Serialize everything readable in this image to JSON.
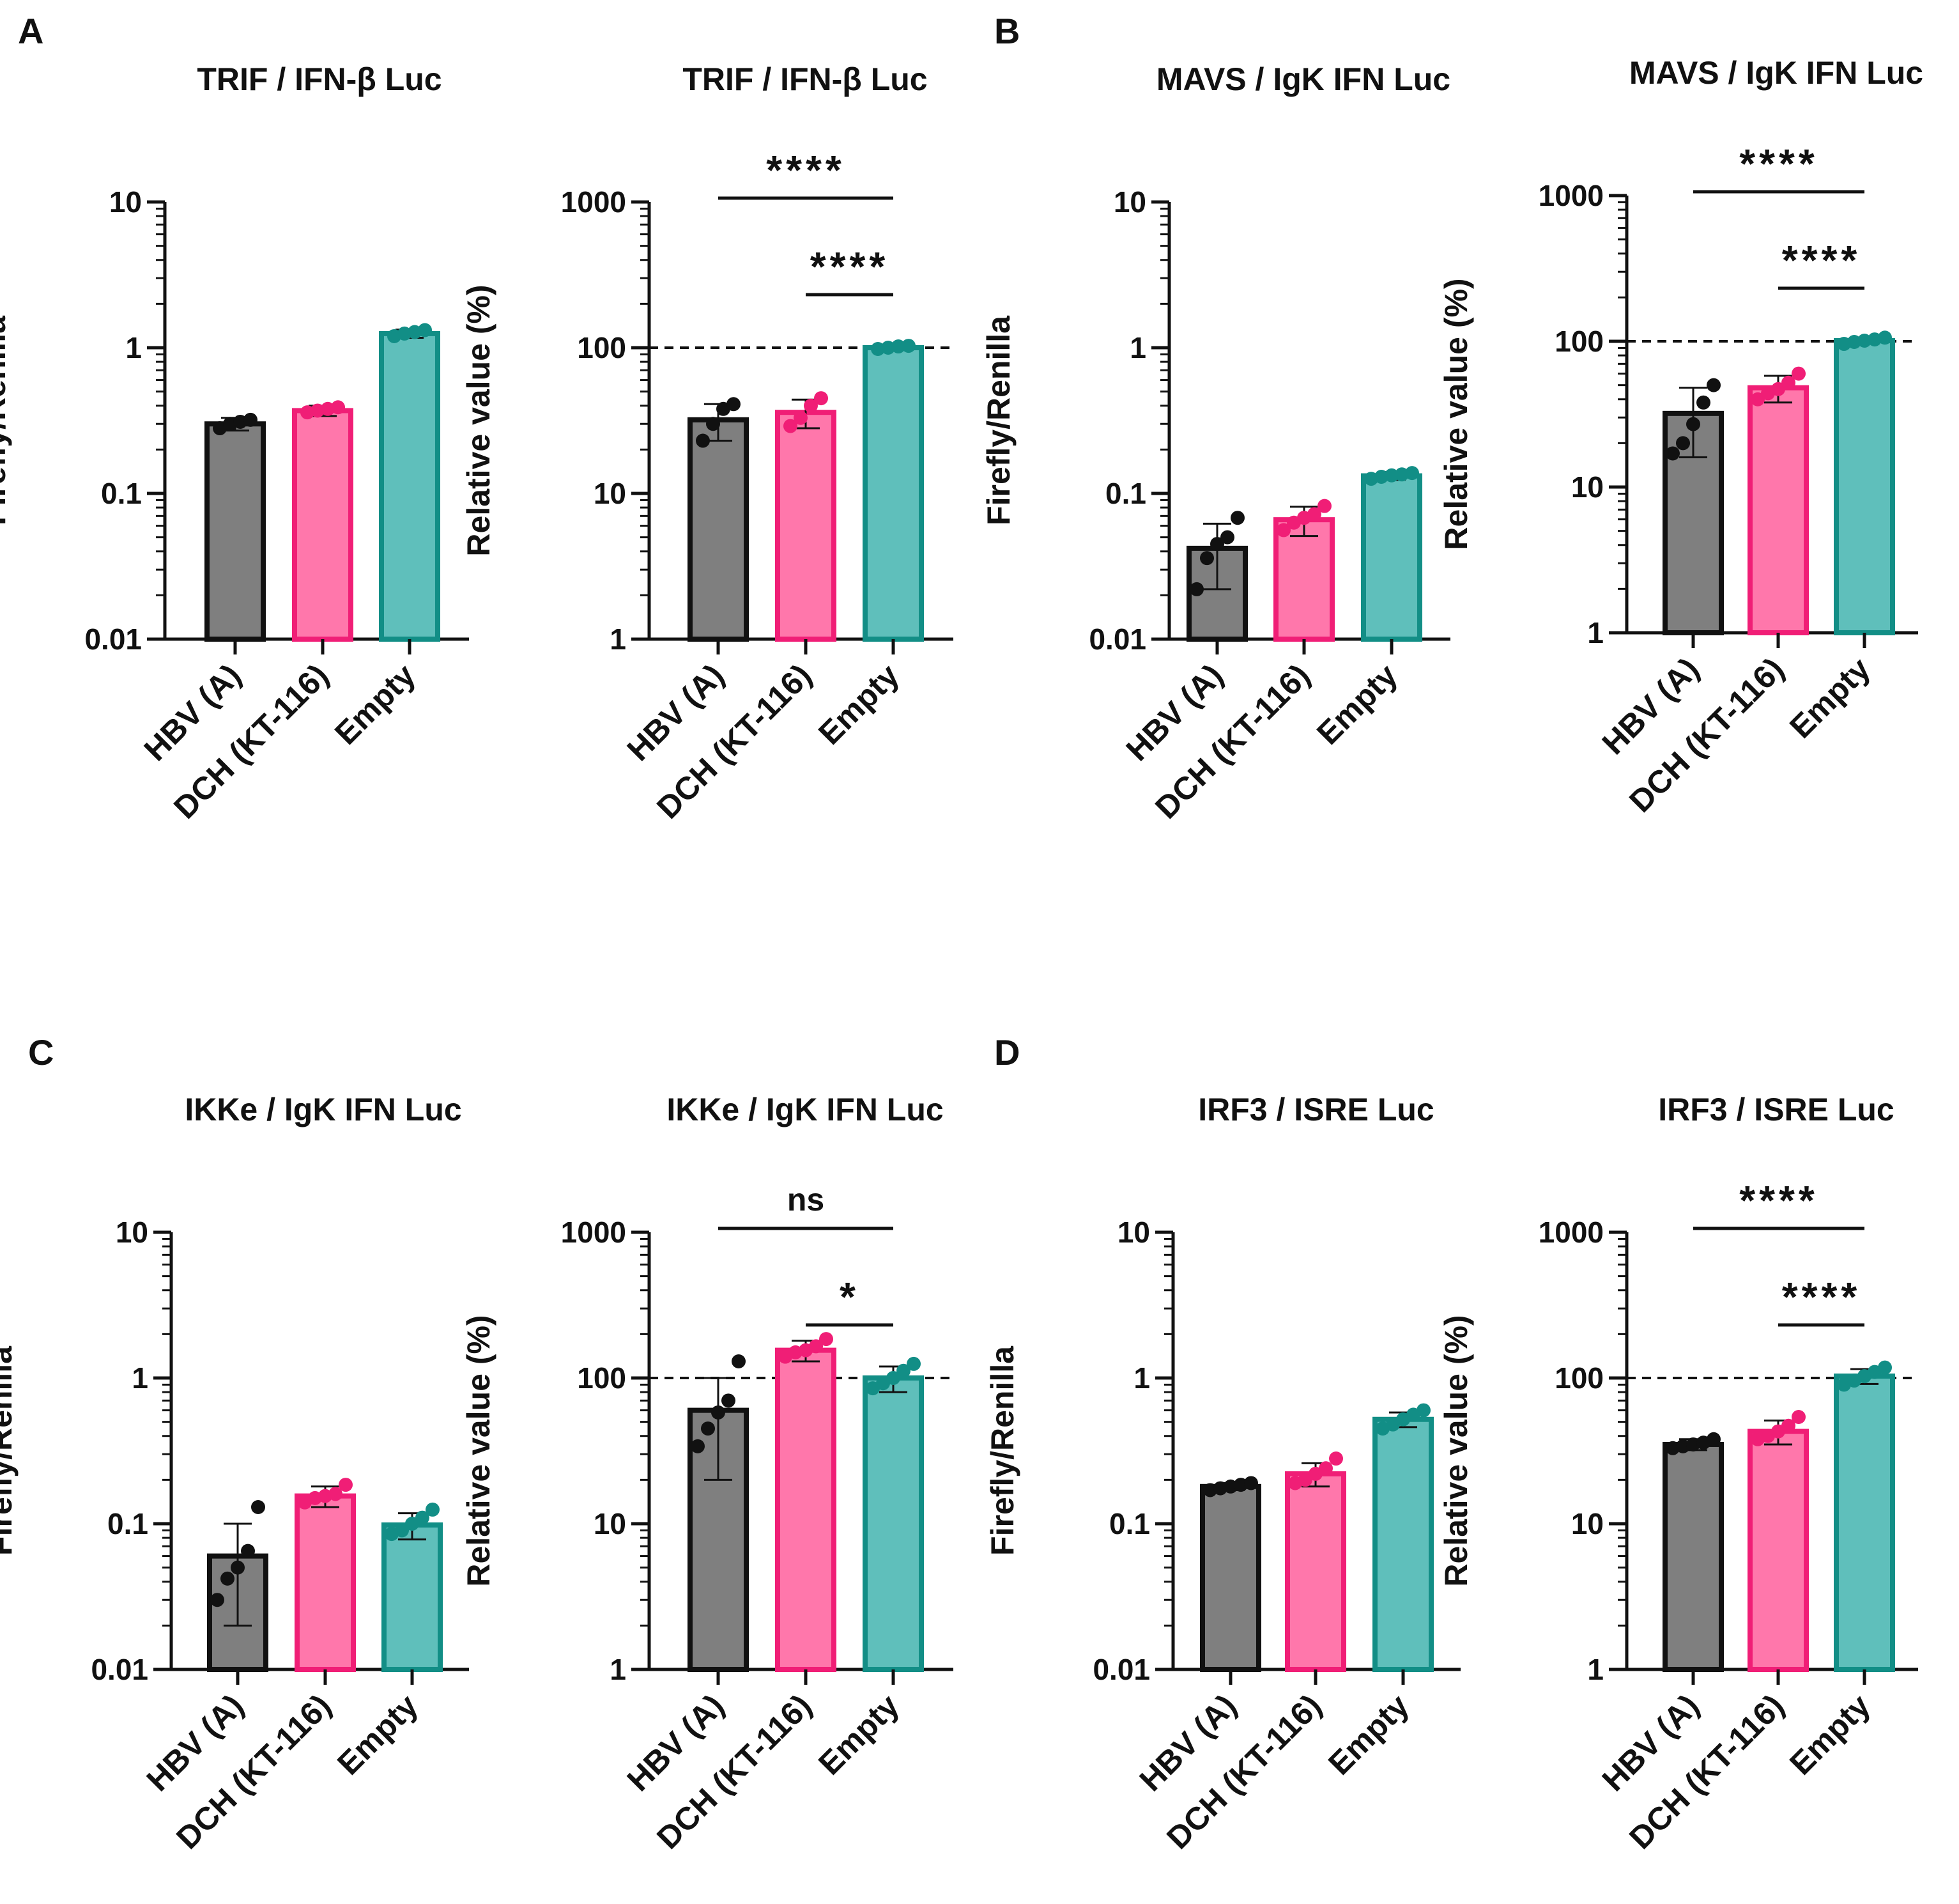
{
  "figure": {
    "panel_letters": [
      "A",
      "B",
      "C",
      "D"
    ],
    "colors": {
      "HBV (A)": "#7f7f7f",
      "DCH (KT-116)": "#ff77ab",
      "Empty": "#5fbfbb",
      "edge": [
        "#111111",
        "#f01e76",
        "#128e86"
      ],
      "dot": [
        "#111111",
        "#f01e76",
        "#128e86"
      ]
    }
  },
  "chart_data": [
    {
      "type": "bar",
      "panel": "A",
      "title": "TRIF / IFN-β Luc",
      "ylabel": "Firefly/Renilla",
      "yscale": "log",
      "ylim": [
        0.01,
        10
      ],
      "yticks": [
        "0.01",
        "0.1",
        "1",
        "10"
      ],
      "categories": [
        "HBV (A)",
        "DCH (KT-116)",
        "Empty"
      ],
      "values": [
        0.3,
        0.37,
        1.25
      ],
      "error": [
        0.03,
        0.03,
        0.08
      ],
      "points": [
        [
          0.28,
          0.3,
          0.31,
          0.32
        ],
        [
          0.36,
          0.37,
          0.38,
          0.39
        ],
        [
          1.2,
          1.25,
          1.28,
          1.32
        ]
      ],
      "reference_line": null,
      "significance": []
    },
    {
      "type": "bar",
      "panel": "A",
      "title": "TRIF / IFN-β Luc",
      "ylabel": "Relative value (%)",
      "yscale": "log",
      "ylim": [
        1,
        1000
      ],
      "yticks": [
        "1",
        "10",
        "100",
        "1000"
      ],
      "categories": [
        "HBV (A)",
        "DCH (KT-116)",
        "Empty"
      ],
      "values": [
        32,
        36,
        100
      ],
      "error": [
        9,
        8,
        3
      ],
      "points": [
        [
          23,
          30,
          38,
          41
        ],
        [
          29,
          33,
          40,
          45
        ],
        [
          98,
          100,
          102,
          103
        ]
      ],
      "reference_line": 100,
      "significance": [
        {
          "from": 0,
          "to": 2,
          "label": "****"
        },
        {
          "from": 1,
          "to": 2,
          "label": "****"
        }
      ]
    },
    {
      "type": "bar",
      "panel": "B",
      "title": "MAVS / IgK IFN Luc",
      "ylabel": "Firefly/Renilla",
      "yscale": "log",
      "ylim": [
        0.01,
        10
      ],
      "yticks": [
        "0.01",
        "0.1",
        "1",
        "10"
      ],
      "categories": [
        "HBV (A)",
        "DCH (KT-116)",
        "Empty"
      ],
      "values": [
        0.042,
        0.066,
        0.132
      ],
      "error": [
        0.02,
        0.015,
        0.008
      ],
      "points": [
        [
          0.022,
          0.036,
          0.045,
          0.05,
          0.068
        ],
        [
          0.056,
          0.063,
          0.068,
          0.072,
          0.082
        ],
        [
          0.126,
          0.13,
          0.133,
          0.135,
          0.138
        ]
      ],
      "reference_line": null,
      "significance": []
    },
    {
      "type": "bar",
      "panel": "B",
      "title": "MAVS / IgK IFN Luc",
      "ylabel": "Relative value (%)",
      "yscale": "log",
      "ylim": [
        1,
        1000
      ],
      "yticks": [
        "1",
        "10",
        "100",
        "1000"
      ],
      "categories": [
        "HBV (A)",
        "DCH (KT-116)",
        "Empty"
      ],
      "values": [
        32,
        48,
        101
      ],
      "error": [
        16,
        10,
        4
      ],
      "points": [
        [
          17,
          20,
          27,
          38,
          50
        ],
        [
          40,
          44,
          47,
          52,
          60
        ],
        [
          96,
          99,
          101,
          103,
          106
        ]
      ],
      "reference_line": 100,
      "significance": [
        {
          "from": 0,
          "to": 2,
          "label": "****"
        },
        {
          "from": 1,
          "to": 2,
          "label": "****"
        }
      ]
    },
    {
      "type": "bar",
      "panel": "C",
      "title": "IKKe / IgK IFN Luc",
      "ylabel": "Firefly/Renilla",
      "yscale": "log",
      "ylim": [
        0.01,
        10
      ],
      "yticks": [
        "0.01",
        "0.1",
        "1",
        "10"
      ],
      "categories": [
        "HBV (A)",
        "DCH (KT-116)",
        "Empty"
      ],
      "values": [
        0.06,
        0.155,
        0.098
      ],
      "error": [
        0.04,
        0.025,
        0.02
      ],
      "points": [
        [
          0.03,
          0.042,
          0.05,
          0.065,
          0.13
        ],
        [
          0.14,
          0.15,
          0.155,
          0.16,
          0.185
        ],
        [
          0.085,
          0.09,
          0.1,
          0.11,
          0.125
        ]
      ],
      "reference_line": null,
      "significance": []
    },
    {
      "type": "bar",
      "panel": "C",
      "title": "IKKe / IgK IFN Luc",
      "ylabel": "Relative value (%)",
      "yscale": "log",
      "ylim": [
        1,
        1000
      ],
      "yticks": [
        "1",
        "10",
        "100",
        "1000"
      ],
      "categories": [
        "HBV (A)",
        "DCH (KT-116)",
        "Empty"
      ],
      "values": [
        60,
        155,
        100
      ],
      "error": [
        40,
        25,
        20
      ],
      "points": [
        [
          34,
          45,
          58,
          70,
          130
        ],
        [
          140,
          150,
          155,
          165,
          185
        ],
        [
          85,
          92,
          100,
          112,
          125
        ]
      ],
      "reference_line": 100,
      "significance": [
        {
          "from": 0,
          "to": 2,
          "label": "ns"
        },
        {
          "from": 1,
          "to": 2,
          "label": "*"
        }
      ]
    },
    {
      "type": "bar",
      "panel": "D",
      "title": "IRF3 / ISRE Luc",
      "ylabel": "Firefly/Renilla",
      "yscale": "log",
      "ylim": [
        0.01,
        10
      ],
      "yticks": [
        "0.01",
        "0.1",
        "1",
        "10"
      ],
      "categories": [
        "HBV (A)",
        "DCH (KT-116)",
        "Empty"
      ],
      "values": [
        0.18,
        0.22,
        0.52
      ],
      "error": [
        0.01,
        0.04,
        0.06
      ],
      "points": [
        [
          0.17,
          0.175,
          0.18,
          0.185,
          0.19
        ],
        [
          0.19,
          0.2,
          0.22,
          0.24,
          0.28
        ],
        [
          0.45,
          0.48,
          0.52,
          0.56,
          0.6
        ]
      ],
      "reference_line": null,
      "significance": []
    },
    {
      "type": "bar",
      "panel": "D",
      "title": "IRF3 / ISRE Luc",
      "ylabel": "Relative value (%)",
      "yscale": "log",
      "ylim": [
        1,
        1000
      ],
      "yticks": [
        "1",
        "10",
        "100",
        "1000"
      ],
      "categories": [
        "HBV (A)",
        "DCH (KT-116)",
        "Empty"
      ],
      "values": [
        35,
        43,
        103
      ],
      "error": [
        3,
        8,
        12
      ],
      "points": [
        [
          33,
          34,
          35,
          36,
          38
        ],
        [
          38,
          40,
          43,
          47,
          54
        ],
        [
          90,
          96,
          103,
          110,
          118
        ]
      ],
      "reference_line": 100,
      "significance": [
        {
          "from": 0,
          "to": 2,
          "label": "****"
        },
        {
          "from": 1,
          "to": 2,
          "label": "****"
        }
      ]
    }
  ]
}
